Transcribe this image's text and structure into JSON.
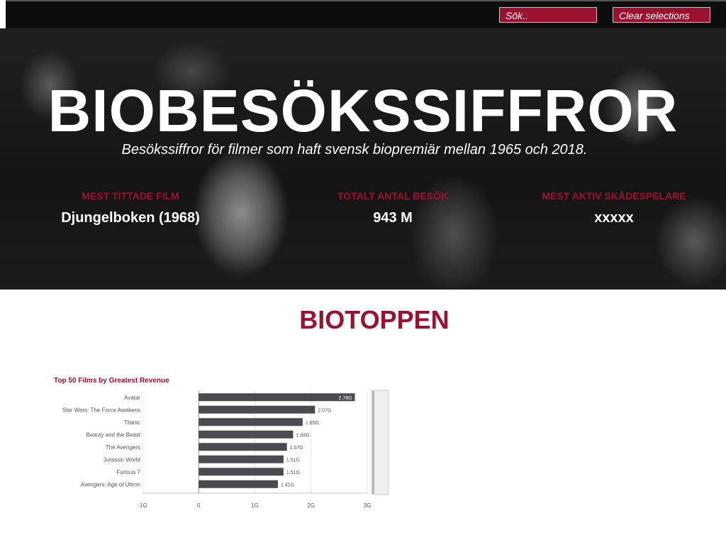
{
  "toolbar": {
    "search_label": "Sök..",
    "clear_label": "Clear selections"
  },
  "hero": {
    "title": "BIOBESÖKSSIFFROR",
    "subtitle": "Besökssiffror för filmer som haft svensk biopremiär mellan 1965 och 2018."
  },
  "kpis": [
    {
      "label": "MEST TITTADE FILM",
      "value": "Djungelboken (1968)"
    },
    {
      "label": "TOTALT ANTAL BESÖK",
      "value": "943 M"
    },
    {
      "label": "MEST AKTIV SKÅDESPELARE",
      "value": "xxxxx"
    }
  ],
  "section_title": "BIOTOPPEN",
  "colors": {
    "accent": "#9b1230",
    "bar": "#4a4b50",
    "topbar": "#0d0d0d"
  },
  "chart_data": {
    "type": "bar",
    "orientation": "horizontal",
    "title": "Top 50 Films by Greatest Revenue",
    "categories": [
      "Avatar",
      "Star Wars: The Force Awakens",
      "Titanic",
      "Beauty and the Beast",
      "The Avengers",
      "Jurassic World",
      "Furious 7",
      "Avengers: Age of Ultron"
    ],
    "values": [
      2.78,
      2.07,
      1.85,
      1.68,
      1.57,
      1.51,
      1.51,
      1.41
    ],
    "data_labels": [
      "2.78G",
      "2.07G",
      "1.85G",
      "1.68G",
      "1.57G",
      "1.51G",
      "1.51G",
      "1.41G"
    ],
    "xlim": [
      -1,
      3
    ],
    "xticks": [
      -1,
      0,
      1,
      2,
      3
    ],
    "xtick_labels": [
      "-1G",
      "0",
      "1G",
      "2G",
      "3G"
    ],
    "grid": true,
    "scrollbar": true
  }
}
